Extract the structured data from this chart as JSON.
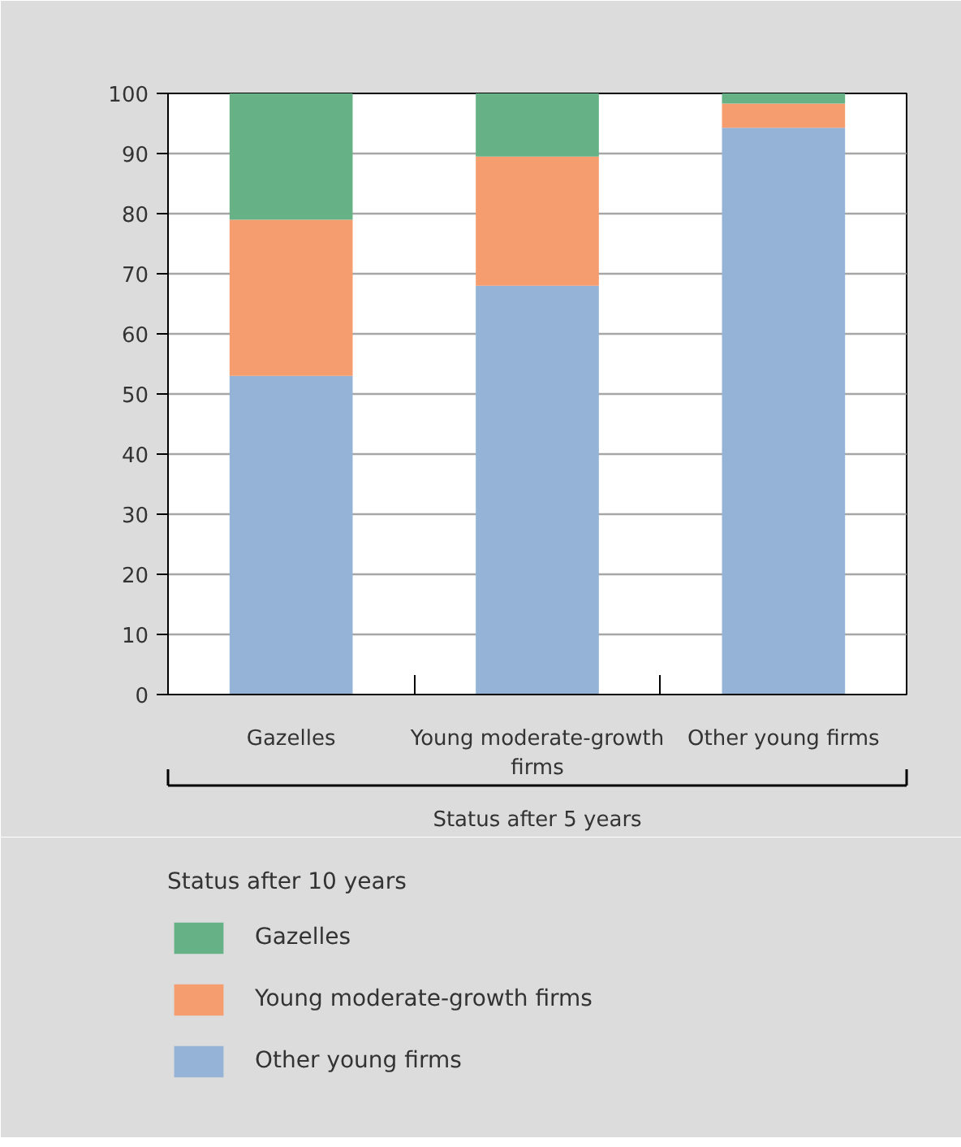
{
  "chart_data": {
    "type": "bar",
    "stacked": true,
    "categories": [
      "Gazelles",
      "Young moderate-growth firms",
      "Other young firms"
    ],
    "xlabel": "Status after 5 years",
    "legend_title": "Status after 10 years",
    "series": [
      {
        "name": "Other young firms",
        "color": "#95b3d7",
        "values": [
          53,
          68,
          94.3
        ]
      },
      {
        "name": "Young moderate-growth firms",
        "color": "#f59d6e",
        "values": [
          26,
          21.5,
          4
        ]
      },
      {
        "name": "Gazelles",
        "color": "#66b186",
        "values": [
          21,
          10.5,
          1.7
        ]
      }
    ],
    "ylim": [
      0,
      100
    ],
    "yticks": [
      0,
      10,
      20,
      30,
      40,
      50,
      60,
      70,
      80,
      90,
      100
    ],
    "grid": "y",
    "legend": "bottom"
  }
}
